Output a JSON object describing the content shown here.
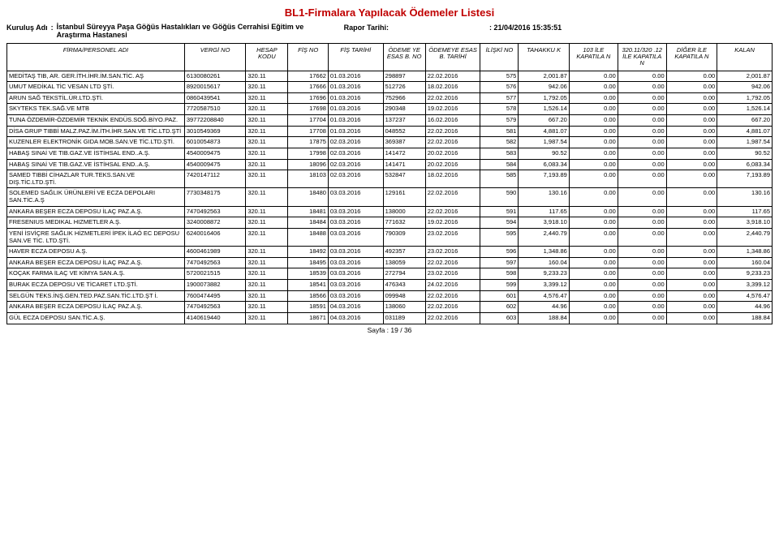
{
  "report": {
    "title": "BL1-Firmalara Yapılacak Ödemeler Listesi",
    "org_label": "Kuruluş Adı",
    "org_name": "İstanbul Süreyya Paşa Göğüs Hastalıkları ve Göğüs Cerrahisi Eğitim ve Araştırma Hastanesi",
    "report_date_label": "Rapor Tarihi:",
    "report_date": "21/04/2016 15:35:51",
    "page_label": "Sayfa : 19 / 36",
    "title_color": "#c00000"
  },
  "columns": [
    "FİRMA/PERSONEL ADI",
    "VERGİ NO",
    "HESAP KODU",
    "FİŞ NO",
    "FİŞ TARİHİ",
    "ÖDEME YE ESAS B. NO",
    "ÖDEMEYE ESAS B. TARİHİ",
    "İLİŞKİ NO",
    "TAHAKKU K",
    "103 İLE KAPATILA N",
    "320.11/320 .12 İLE KAPATILA N",
    "DİĞER İLE KAPATILA N",
    "KALAN"
  ],
  "rows": [
    {
      "name": "MEDİTAŞ TIB, AR. GER.İTH.İHR.İM.SAN.TİC. AŞ",
      "vergi": "6130080261",
      "hesap": "320.11",
      "fisno": "17662",
      "fistar": "01.03.2016",
      "oebno": "298897",
      "oebtar": "22.02.2016",
      "ilis": "575",
      "tahak": "2,001.87",
      "k103": "0.00",
      "k320": "0.00",
      "kdig": "0.00",
      "kalan": "2,001.87"
    },
    {
      "name": "UMUT MEDİKAL TİC VESAN LTD ŞTİ.",
      "vergi": "8920015617",
      "hesap": "320.11",
      "fisno": "17666",
      "fistar": "01.03.2016",
      "oebno": "512726",
      "oebtar": "18.02.2016",
      "ilis": "576",
      "tahak": "942.06",
      "k103": "0.00",
      "k320": "0.00",
      "kdig": "0.00",
      "kalan": "942.06"
    },
    {
      "name": "ARUN SAĞ TEKSTİL.ÜR.LTD.ŞTİ.",
      "vergi": "0860439541",
      "hesap": "320.11",
      "fisno": "17696",
      "fistar": "01.03.2016",
      "oebno": "752966",
      "oebtar": "22.02.2016",
      "ilis": "577",
      "tahak": "1,792.05",
      "k103": "0.00",
      "k320": "0.00",
      "kdig": "0.00",
      "kalan": "1,792.05"
    },
    {
      "name": "SKYTEKS TEK.SAĞ.VE MTB",
      "vergi": "7720587510",
      "hesap": "320.11",
      "fisno": "17698",
      "fistar": "01.03.2016",
      "oebno": "290348",
      "oebtar": "19.02.2016",
      "ilis": "578",
      "tahak": "1,526.14",
      "k103": "0.00",
      "k320": "0.00",
      "kdig": "0.00",
      "kalan": "1,526.14"
    },
    {
      "name": "TUNA ÖZDEMİR-ÖZDEMİR TEKNİK ENDÜS.SOĞ.BİYO.PAZ.",
      "vergi": "39772208840",
      "hesap": "320.11",
      "fisno": "17704",
      "fistar": "01.03.2016",
      "oebno": "137237",
      "oebtar": "16.02.2016",
      "ilis": "579",
      "tahak": "667.20",
      "k103": "0.00",
      "k320": "0.00",
      "kdig": "0.00",
      "kalan": "667.20"
    },
    {
      "name": "DİSA GRUP TIBBİ MALZ.PAZ.İM.İTH.İHR.SAN.VE TİC.LTD.ŞTİ",
      "vergi": "3010549369",
      "hesap": "320.11",
      "fisno": "17708",
      "fistar": "01.03.2016",
      "oebno": "048552",
      "oebtar": "22.02.2016",
      "ilis": "581",
      "tahak": "4,881.07",
      "k103": "0.00",
      "k320": "0.00",
      "kdig": "0.00",
      "kalan": "4,881.07"
    },
    {
      "name": "KUZENLER ELEKTRONİK GIDA MOB.SAN.VE TİC.LTD.ŞTİ.",
      "vergi": "6010054873",
      "hesap": "320.11",
      "fisno": "17875",
      "fistar": "02.03.2016",
      "oebno": "369387",
      "oebtar": "22.02.2016",
      "ilis": "582",
      "tahak": "1,987.54",
      "k103": "0.00",
      "k320": "0.00",
      "kdig": "0.00",
      "kalan": "1,987.54"
    },
    {
      "name": "HABAŞ SINAİ VE TIB.GAZ.VE İSTİHSAL END..A.Ş.",
      "vergi": "4540009475",
      "hesap": "320.11",
      "fisno": "17998",
      "fistar": "02.03.2016",
      "oebno": "141472",
      "oebtar": "20.02.2016",
      "ilis": "583",
      "tahak": "90.52",
      "k103": "0.00",
      "k320": "0.00",
      "kdig": "0.00",
      "kalan": "90.52"
    },
    {
      "name": "HABAŞ SINAİ VE TIB.GAZ.VE İSTİHSAL END..A.Ş.",
      "vergi": "4540009475",
      "hesap": "320.11",
      "fisno": "18096",
      "fistar": "02.03.2016",
      "oebno": "141471",
      "oebtar": "20.02.2016",
      "ilis": "584",
      "tahak": "6,083.34",
      "k103": "0.00",
      "k320": "0.00",
      "kdig": "0.00",
      "kalan": "6,083.34"
    },
    {
      "name": "SAMED TIBBİ CİHAZLAR TUR.TEKS.SAN.VE DIŞ.TİC.LTD.ŞTİ.",
      "vergi": "7420147112",
      "hesap": "320.11",
      "fisno": "18103",
      "fistar": "02.03.2016",
      "oebno": "532847",
      "oebtar": "18.02.2016",
      "ilis": "585",
      "tahak": "7,193.89",
      "k103": "0.00",
      "k320": "0.00",
      "kdig": "0.00",
      "kalan": "7,193.89"
    },
    {
      "name": "SOLEMED SAĞLIK ÜRÜNLERİ VE ECZA DEPOLARI SAN.TİC.A.Ş",
      "vergi": "7730348175",
      "hesap": "320.11",
      "fisno": "18480",
      "fistar": "03.03.2016",
      "oebno": "129161",
      "oebtar": "22.02.2016",
      "ilis": "590",
      "tahak": "130.16",
      "k103": "0.00",
      "k320": "0.00",
      "kdig": "0.00",
      "kalan": "130.16"
    },
    {
      "name": "ANKARA BEŞER ECZA DEPOSU İLAÇ PAZ.A.Ş.",
      "vergi": "7470492563",
      "hesap": "320.11",
      "fisno": "18481",
      "fistar": "03.03.2016",
      "oebno": "138000",
      "oebtar": "22.02.2016",
      "ilis": "591",
      "tahak": "117.65",
      "k103": "0.00",
      "k320": "0.00",
      "kdig": "0.00",
      "kalan": "117.65"
    },
    {
      "name": "FRESENIUS MEDIKAL HIZMETLER A.Ş.",
      "vergi": "3240008872",
      "hesap": "320.11",
      "fisno": "18484",
      "fistar": "03.03.2016",
      "oebno": "771632",
      "oebtar": "19.02.2016",
      "ilis": "594",
      "tahak": "3,918.10",
      "k103": "0.00",
      "k320": "0.00",
      "kdig": "0.00",
      "kalan": "3,918.10"
    },
    {
      "name": "YENİ İSVİÇRE SAĞLIK HİZMETLERİ İPEK İLAÖ EC DEPOSU SAN.VE TİC. LTD.ŞTİ.",
      "vergi": "6240016406",
      "hesap": "320.11",
      "fisno": "18488",
      "fistar": "03.03.2016",
      "oebno": "790309",
      "oebtar": "23.02.2016",
      "ilis": "595",
      "tahak": "2,440.79",
      "k103": "0.00",
      "k320": "0.00",
      "kdig": "0.00",
      "kalan": "2,440.79"
    },
    {
      "name": "HAVER ECZA DEPOSU A.Ş.",
      "vergi": "4600461989",
      "hesap": "320.11",
      "fisno": "18492",
      "fistar": "03.03.2016",
      "oebno": "492357",
      "oebtar": "23.02.2016",
      "ilis": "596",
      "tahak": "1,348.86",
      "k103": "0.00",
      "k320": "0.00",
      "kdig": "0.00",
      "kalan": "1,348.86"
    },
    {
      "name": "ANKARA BEŞER ECZA DEPOSU İLAÇ PAZ.A.Ş.",
      "vergi": "7470492563",
      "hesap": "320.11",
      "fisno": "18495",
      "fistar": "03.03.2016",
      "oebno": "138059",
      "oebtar": "22.02.2016",
      "ilis": "597",
      "tahak": "160.04",
      "k103": "0.00",
      "k320": "0.00",
      "kdig": "0.00",
      "kalan": "160.04"
    },
    {
      "name": "KOÇAK FARMA İLAÇ VE KİMYA SAN.A.Ş.",
      "vergi": "5720021515",
      "hesap": "320.11",
      "fisno": "18539",
      "fistar": "03.03.2016",
      "oebno": "272794",
      "oebtar": "23.02.2016",
      "ilis": "598",
      "tahak": "9,233.23",
      "k103": "0.00",
      "k320": "0.00",
      "kdig": "0.00",
      "kalan": "9,233.23"
    },
    {
      "name": "BURAK ECZA DEPOSU VE TİCARET LTD.ŞTİ.",
      "vergi": "1900073882",
      "hesap": "320.11",
      "fisno": "18541",
      "fistar": "03.03.2016",
      "oebno": "476343",
      "oebtar": "24.02.2016",
      "ilis": "599",
      "tahak": "3,399.12",
      "k103": "0.00",
      "k320": "0.00",
      "kdig": "0.00",
      "kalan": "3,399.12"
    },
    {
      "name": "SELGÜN TEKS.İNŞ.GEN.TED.PAZ.SAN.TİC.LTD.ŞT İ.",
      "vergi": "7600474495",
      "hesap": "320.11",
      "fisno": "18566",
      "fistar": "03.03.2016",
      "oebno": "099948",
      "oebtar": "22.02.2016",
      "ilis": "601",
      "tahak": "4,576.47",
      "k103": "0.00",
      "k320": "0.00",
      "kdig": "0.00",
      "kalan": "4,576.47"
    },
    {
      "name": "ANKARA BEŞER ECZA DEPOSU İLAÇ PAZ.A.Ş.",
      "vergi": "7470492563",
      "hesap": "320.11",
      "fisno": "18591",
      "fistar": "04.03.2016",
      "oebno": "138060",
      "oebtar": "22.02.2016",
      "ilis": "602",
      "tahak": "44.96",
      "k103": "0.00",
      "k320": "0.00",
      "kdig": "0.00",
      "kalan": "44.96"
    },
    {
      "name": "GÜL ECZA DEPOSU SAN.TİC.A.Ş.",
      "vergi": "4140619440",
      "hesap": "320.11",
      "fisno": "18671",
      "fistar": "04.03.2016",
      "oebno": "031189",
      "oebtar": "22.02.2016",
      "ilis": "603",
      "tahak": "188.84",
      "k103": "0.00",
      "k320": "0.00",
      "kdig": "0.00",
      "kalan": "188.84"
    }
  ]
}
